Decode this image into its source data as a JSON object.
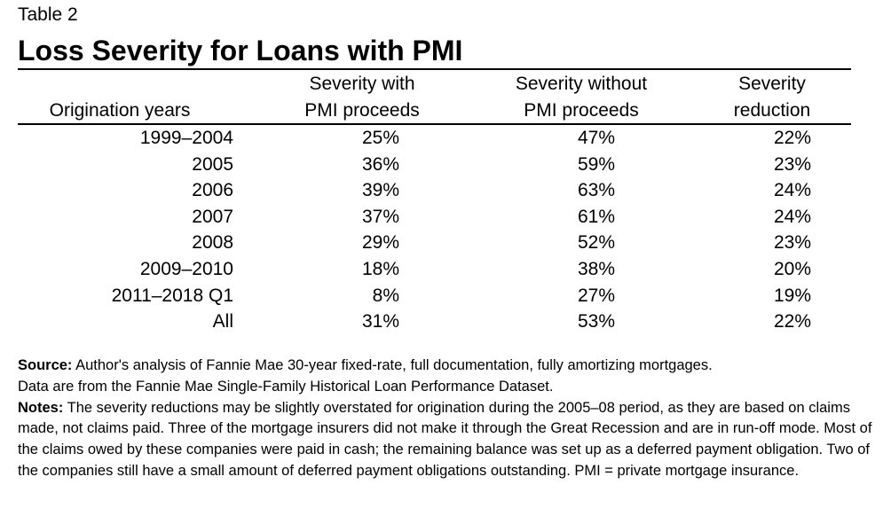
{
  "label": "Table 2",
  "title": "Loss Severity for Loans with PMI",
  "headers": {
    "origination_years": "Origination years",
    "with_pmi_line1": "Severity with",
    "with_pmi_line2": "PMI proceeds",
    "without_pmi_line1": "Severity without",
    "without_pmi_line2": "PMI proceeds",
    "reduction_line1": "Severity",
    "reduction_line2": "reduction"
  },
  "rows": [
    {
      "years": "1999–2004",
      "with": "25%",
      "without": "47%",
      "reduction": "22%"
    },
    {
      "years": "2005",
      "with": "36%",
      "without": "59%",
      "reduction": "23%"
    },
    {
      "years": "2006",
      "with": "39%",
      "without": "63%",
      "reduction": "24%"
    },
    {
      "years": "2007",
      "with": "37%",
      "without": "61%",
      "reduction": "24%"
    },
    {
      "years": "2008",
      "with": "29%",
      "without": "52%",
      "reduction": "23%"
    },
    {
      "years": "2009–2010",
      "with": "18%",
      "without": "38%",
      "reduction": "20%"
    },
    {
      "years": "2011–2018 Q1",
      "with": "8%",
      "without": "27%",
      "reduction": "19%"
    },
    {
      "years": "All",
      "with": "31%",
      "without": "53%",
      "reduction": "22%"
    }
  ],
  "source": {
    "label": "Source:",
    "text": " Author's analysis of Fannie Mae 30-year fixed-rate, full documentation, fully amortizing mortgages.",
    "text2": "Data are from the Fannie Mae Single-Family Historical Loan Performance Dataset."
  },
  "notes": {
    "label": "Notes:",
    "text": " The severity reductions may be slightly overstated for origination during the 2005–08 period, as they are based on claims made, not claims paid. Three of the mortgage insurers did not make it through the Great Recession and are in run-off mode. Most of the claims owed by these companies were paid in cash; the remaining balance was set up as a deferred payment obligation. Two of the companies still have a small amount of deferred payment obligations outstanding. PMI = private mortgage insurance."
  }
}
